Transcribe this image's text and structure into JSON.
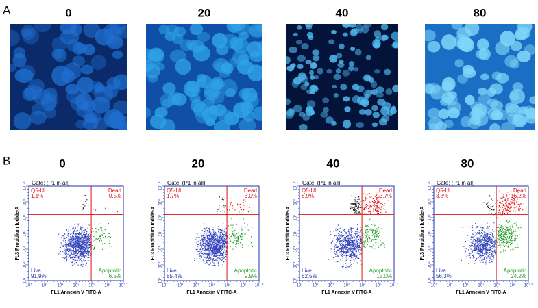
{
  "panel_a": {
    "label": "A",
    "images": [
      {
        "title": "0"
      },
      {
        "title": "20"
      },
      {
        "title": "40"
      },
      {
        "title": "80"
      }
    ]
  },
  "panel_b": {
    "label": "B",
    "y_axis_label": "FL3 Propidium Iodide-A",
    "x_axis_label": "FL1 Annexin V FITC-A",
    "tick_labels": [
      "10¹",
      "10²",
      "10³",
      "10⁴",
      "10⁵",
      "10⁶",
      "10⁷·²"
    ],
    "plots": [
      {
        "title": "0",
        "gate": "Gate: (P1 in all)",
        "ul_name": "Q5-UL",
        "ul": "1.1%",
        "ur_name": "Dead",
        "ur": "0.5%",
        "ll_name": "Live",
        "ll": "91.9%",
        "lr_name": "Apoptotic",
        "lr": "6.5%"
      },
      {
        "title": "20",
        "gate": "Gate: (P1 in all)",
        "ul_name": "Q5-UL",
        "ul": "1.7%",
        "ur_name": "Dead",
        "ur": "3.0%",
        "ll_name": "Live",
        "ll": "85.4%",
        "lr_name": "Apoptotic",
        "lr": "9.9%"
      },
      {
        "title": "40",
        "gate": "Gate: (P1 in all)",
        "ul_name": "Q5-UL",
        "ul": "8.9%",
        "ur_name": "Dead",
        "ur": "13.7%",
        "ll_name": "Live",
        "ll": "62.5%",
        "lr_name": "Apoptotic",
        "lr": "15.0%"
      },
      {
        "title": "80",
        "gate": "Gate: (P1 in all)",
        "ul_name": "Q5-UL",
        "ul": "3.3%",
        "ur_name": "Dead",
        "ur": "16.2%",
        "ll_name": "Live",
        "ll": "56.3%",
        "lr_name": "Apoptotic",
        "lr": "24.2%"
      }
    ]
  }
}
